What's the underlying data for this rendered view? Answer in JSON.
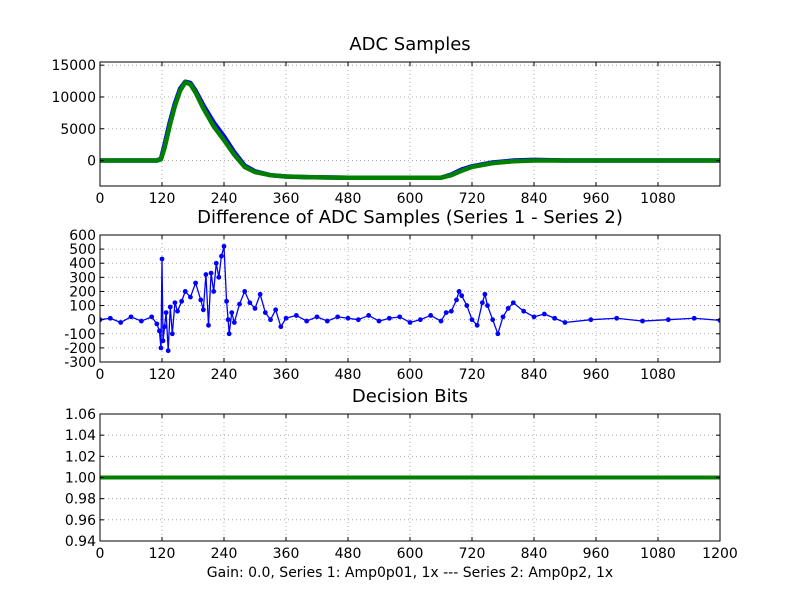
{
  "footer_text": "Gain: 0.0, Series 1: Amp0p01, 1x --- Series 2: Amp0p2, 1x",
  "colors": {
    "series1": "#0000ff",
    "series2": "#007f00",
    "grid": "#9a9a9a"
  },
  "chart_data": [
    {
      "type": "line",
      "title": "ADC Samples",
      "grid": true,
      "xlim": [
        0,
        1200
      ],
      "ylim": [
        -4000,
        15500
      ],
      "x_ticks": [
        0,
        120,
        240,
        360,
        480,
        600,
        720,
        840,
        960,
        1080
      ],
      "y_ticks": [
        0,
        5000,
        10000,
        15000
      ],
      "series": [
        {
          "color": "#0000ff",
          "x": [
            0,
            110,
            118,
            125,
            135,
            145,
            155,
            165,
            175,
            185,
            200,
            220,
            240,
            260,
            280,
            300,
            330,
            360,
            400,
            480,
            600,
            660,
            680,
            700,
            720,
            760,
            800,
            840,
            900,
            1000,
            1100,
            1200
          ],
          "y": [
            0,
            0,
            300,
            2500,
            6000,
            9000,
            11300,
            12400,
            12200,
            11000,
            8700,
            6000,
            3800,
            1300,
            -800,
            -1700,
            -2300,
            -2500,
            -2600,
            -2700,
            -2700,
            -2700,
            -2200,
            -1400,
            -900,
            -300,
            0,
            100,
            0,
            0,
            0,
            0
          ]
        },
        {
          "color": "#007f00",
          "x": [
            0,
            110,
            118,
            125,
            135,
            145,
            155,
            165,
            175,
            185,
            200,
            220,
            240,
            260,
            280,
            300,
            330,
            360,
            400,
            480,
            600,
            660,
            680,
            700,
            720,
            760,
            800,
            840,
            900,
            1000,
            1100,
            1200
          ],
          "y": [
            0,
            0,
            200,
            2000,
            5500,
            8600,
            11000,
            12300,
            12000,
            10700,
            8200,
            5400,
            3200,
            900,
            -1000,
            -1800,
            -2300,
            -2500,
            -2600,
            -2700,
            -2700,
            -2700,
            -2300,
            -1600,
            -1000,
            -400,
            -100,
            0,
            0,
            0,
            0,
            0
          ]
        }
      ]
    },
    {
      "type": "line",
      "title": "Difference of ADC Samples (Series 1 - Series 2)",
      "grid": true,
      "xlim": [
        0,
        1200
      ],
      "ylim": [
        -300,
        600
      ],
      "x_ticks": [
        0,
        120,
        240,
        360,
        480,
        600,
        720,
        840,
        960,
        1080
      ],
      "y_ticks": [
        -300,
        -200,
        -100,
        0,
        100,
        200,
        300,
        400,
        500,
        600
      ],
      "series": [
        {
          "color": "#0000ff",
          "x": [
            0,
            20,
            40,
            60,
            80,
            100,
            110,
            115,
            118,
            120,
            122,
            125,
            128,
            132,
            136,
            140,
            145,
            150,
            158,
            165,
            175,
            185,
            195,
            200,
            205,
            210,
            215,
            220,
            225,
            230,
            235,
            240,
            245,
            248,
            250,
            255,
            260,
            270,
            280,
            290,
            300,
            310,
            320,
            330,
            340,
            350,
            360,
            380,
            400,
            420,
            440,
            460,
            480,
            500,
            520,
            540,
            560,
            580,
            600,
            620,
            640,
            660,
            670,
            680,
            690,
            695,
            700,
            710,
            720,
            730,
            740,
            745,
            750,
            760,
            770,
            780,
            790,
            800,
            820,
            840,
            860,
            880,
            900,
            950,
            1000,
            1050,
            1100,
            1150,
            1200
          ],
          "y": [
            0,
            10,
            -20,
            20,
            -10,
            20,
            -30,
            -80,
            -200,
            430,
            -150,
            -50,
            50,
            -220,
            90,
            -100,
            120,
            60,
            130,
            200,
            160,
            260,
            140,
            70,
            320,
            -40,
            330,
            200,
            400,
            300,
            450,
            520,
            130,
            0,
            -100,
            50,
            -20,
            110,
            200,
            120,
            80,
            180,
            50,
            0,
            70,
            -50,
            10,
            30,
            -10,
            20,
            -10,
            20,
            10,
            0,
            30,
            -10,
            10,
            20,
            -20,
            0,
            30,
            -10,
            50,
            60,
            140,
            200,
            170,
            100,
            0,
            -40,
            120,
            180,
            100,
            0,
            -100,
            20,
            80,
            120,
            60,
            20,
            40,
            10,
            -20,
            0,
            10,
            -10,
            0,
            10,
            -5
          ]
        }
      ]
    },
    {
      "type": "line",
      "title": "Decision Bits",
      "grid": true,
      "xlim": [
        0,
        1200
      ],
      "ylim": [
        0.94,
        1.06
      ],
      "x_ticks": [
        0,
        120,
        240,
        360,
        480,
        600,
        720,
        840,
        960,
        1080,
        1200
      ],
      "y_ticks": [
        0.94,
        0.96,
        0.98,
        1.0,
        1.02,
        1.04,
        1.06
      ],
      "y_tick_labels": [
        "0.94",
        "0.96",
        "0.98",
        "1.00",
        "1.02",
        "1.04",
        "1.06"
      ],
      "series": [
        {
          "color": "#0000ff",
          "x": [
            0,
            1200
          ],
          "y": [
            1.0,
            1.0
          ]
        },
        {
          "color": "#007f00",
          "x": [
            0,
            1200
          ],
          "y": [
            1.0,
            1.0
          ]
        }
      ]
    }
  ]
}
